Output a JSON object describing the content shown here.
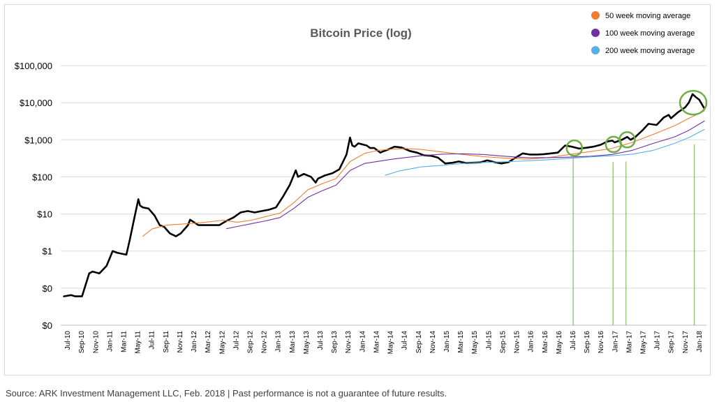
{
  "source_note": "Source: ARK Investment Management LLC, Feb. 2018 | Past performance is not a guarantee of future results.",
  "chart_data": {
    "type": "line",
    "title": "Bitcoin Price (log)",
    "xlabel": "",
    "ylabel": "",
    "yscale": "log",
    "ylim": [
      0.01,
      100000
    ],
    "y_ticks": [
      {
        "value": 0.01,
        "label": "$0"
      },
      {
        "value": 0.1,
        "label": "$0"
      },
      {
        "value": 1,
        "label": "$1"
      },
      {
        "value": 10,
        "label": "$10"
      },
      {
        "value": 100,
        "label": "$100"
      },
      {
        "value": 1000,
        "label": "$1,000"
      },
      {
        "value": 10000,
        "label": "$10,000"
      },
      {
        "value": 100000,
        "label": "$100,000"
      }
    ],
    "xlim": [
      "2010-07-01",
      "2018-02-15"
    ],
    "x_tick_labels": [
      "Jul-10",
      "Sep-10",
      "Nov-10",
      "Jan-11",
      "Mar-11",
      "May-11",
      "Jul-11",
      "Sep-11",
      "Nov-11",
      "Jan-12",
      "Mar-12",
      "May-12",
      "Jul-12",
      "Sep-12",
      "Nov-12",
      "Jan-13",
      "Mar-13",
      "May-13",
      "Jul-13",
      "Sep-13",
      "Nov-13",
      "Jan-14",
      "Mar-14",
      "May-14",
      "Jul-14",
      "Sep-14",
      "Nov-14",
      "Jan-15",
      "Mar-15",
      "May-15",
      "Jul-15",
      "Sep-15",
      "Nov-15",
      "Jan-16",
      "Mar-16",
      "May-16",
      "Jul-16",
      "Sep-16",
      "Nov-16",
      "Jan-17",
      "Mar-17",
      "May-17",
      "Jul-17",
      "Sep-17",
      "Nov-17",
      "Jan-18"
    ],
    "grid": {
      "horizontal": true,
      "vertical": false
    },
    "legend_position": "top-right",
    "series": [
      {
        "name": "",
        "color": "#000000",
        "x": [
          "2010-07-15",
          "2010-08-15",
          "2010-09-01",
          "2010-10-01",
          "2010-11-01",
          "2010-11-15",
          "2010-12-15",
          "2011-01-15",
          "2011-02-10",
          "2011-03-01",
          "2011-03-20",
          "2011-04-10",
          "2011-04-25",
          "2011-05-15",
          "2011-06-01",
          "2011-06-08",
          "2011-06-20",
          "2011-07-15",
          "2011-08-10",
          "2011-09-01",
          "2011-09-20",
          "2011-10-15",
          "2011-11-10",
          "2011-12-01",
          "2012-01-01",
          "2012-01-10",
          "2012-02-15",
          "2012-03-15",
          "2012-04-15",
          "2012-05-15",
          "2012-06-15",
          "2012-07-15",
          "2012-08-15",
          "2012-09-15",
          "2012-10-15",
          "2012-11-15",
          "2012-12-15",
          "2013-01-15",
          "2013-02-15",
          "2013-03-15",
          "2013-04-10",
          "2013-04-20",
          "2013-05-15",
          "2013-06-15",
          "2013-07-05",
          "2013-07-15",
          "2013-08-15",
          "2013-09-15",
          "2013-10-15",
          "2013-11-15",
          "2013-11-30",
          "2013-12-10",
          "2013-12-20",
          "2014-01-05",
          "2014-02-10",
          "2014-02-25",
          "2014-03-15",
          "2014-04-10",
          "2014-04-20",
          "2014-05-15",
          "2014-06-10",
          "2014-07-10",
          "2014-08-15",
          "2014-09-15",
          "2014-10-15",
          "2014-11-15",
          "2014-12-15",
          "2015-01-15",
          "2015-02-15",
          "2015-03-15",
          "2015-04-15",
          "2015-05-15",
          "2015-06-15",
          "2015-07-15",
          "2015-08-15",
          "2015-09-15",
          "2015-10-15",
          "2015-11-15",
          "2015-12-15",
          "2016-01-15",
          "2016-02-15",
          "2016-03-15",
          "2016-04-15",
          "2016-05-15",
          "2016-06-15",
          "2016-07-15",
          "2016-08-15",
          "2016-09-15",
          "2016-10-15",
          "2016-11-15",
          "2016-12-15",
          "2017-01-05",
          "2017-01-15",
          "2017-02-15",
          "2017-03-10",
          "2017-03-25",
          "2017-04-15",
          "2017-05-15",
          "2017-06-10",
          "2017-07-15",
          "2017-08-15",
          "2017-09-05",
          "2017-09-15",
          "2017-10-15",
          "2017-11-15",
          "2017-12-01",
          "2017-12-17",
          "2018-01-01",
          "2018-01-15",
          "2018-02-06"
        ],
        "values": [
          0.06,
          0.065,
          0.06,
          0.06,
          0.25,
          0.28,
          0.25,
          0.4,
          1.0,
          0.9,
          0.85,
          0.8,
          2.0,
          8.0,
          25.0,
          17.0,
          15.0,
          14.0,
          9.0,
          5.0,
          4.5,
          3.0,
          2.5,
          3.0,
          5.0,
          7.0,
          5.0,
          5.0,
          5.0,
          5.0,
          6.5,
          8.0,
          11.0,
          12.0,
          11.0,
          12.0,
          13.0,
          15.0,
          30.0,
          60.0,
          150.0,
          100.0,
          120.0,
          100.0,
          70.0,
          90.0,
          110.0,
          125.0,
          160.0,
          400.0,
          1150.0,
          700.0,
          650.0,
          800.0,
          700.0,
          600.0,
          600.0,
          450.0,
          480.0,
          550.0,
          650.0,
          620.0,
          500.0,
          450.0,
          380.0,
          370.0,
          330.0,
          230.0,
          240.0,
          260.0,
          235.0,
          240.0,
          245.0,
          280.0,
          250.0,
          230.0,
          250.0,
          330.0,
          430.0,
          400.0,
          400.0,
          410.0,
          430.0,
          450.0,
          700.0,
          650.0,
          580.0,
          610.0,
          650.0,
          730.0,
          900.0,
          950.0,
          850.0,
          1000.0,
          1200.0,
          1000.0,
          1200.0,
          1800.0,
          2700.0,
          2500.0,
          4000.0,
          4700.0,
          3800.0,
          5500.0,
          7500.0,
          10000.0,
          17000.0,
          14000.0,
          12000.0,
          7000.0
        ]
      },
      {
        "name": "50 week moving average",
        "color": "#ed7d31",
        "x": [
          "2011-06-20",
          "2011-08-01",
          "2011-10-01",
          "2011-12-01",
          "2012-03-01",
          "2012-06-01",
          "2012-08-01",
          "2012-10-01",
          "2012-12-01",
          "2013-02-01",
          "2013-04-01",
          "2013-06-01",
          "2013-08-01",
          "2013-10-01",
          "2013-12-01",
          "2014-02-01",
          "2014-04-01",
          "2014-06-01",
          "2014-08-01",
          "2014-10-01",
          "2015-01-01",
          "2015-04-01",
          "2015-07-01",
          "2015-10-01",
          "2016-01-01",
          "2016-04-01",
          "2016-07-01",
          "2016-10-01",
          "2017-01-01",
          "2017-04-01",
          "2017-07-01",
          "2017-10-01",
          "2017-12-01",
          "2018-02-06"
        ],
        "values": [
          2.5,
          4.0,
          5.0,
          5.3,
          5.8,
          6.8,
          6.0,
          6.8,
          8.5,
          10.5,
          20.0,
          45.0,
          65.0,
          90.0,
          260.0,
          430.0,
          520.0,
          560.0,
          580.0,
          550.0,
          470.0,
          400.0,
          350.0,
          320.0,
          300.0,
          330.0,
          400.0,
          480.0,
          580.0,
          850.0,
          1400.0,
          2400.0,
          3800.0,
          6000.0
        ]
      },
      {
        "name": "100 week moving average",
        "color": "#7030a0",
        "x": [
          "2012-06-15",
          "2012-08-01",
          "2012-10-01",
          "2012-12-01",
          "2013-02-01",
          "2013-04-01",
          "2013-06-01",
          "2013-08-01",
          "2013-10-01",
          "2013-12-01",
          "2014-02-01",
          "2014-06-01",
          "2014-10-01",
          "2015-01-01",
          "2015-04-01",
          "2015-07-01",
          "2015-10-01",
          "2016-01-01",
          "2016-04-01",
          "2016-07-01",
          "2016-10-01",
          "2017-01-01",
          "2017-04-01",
          "2017-07-01",
          "2017-10-01",
          "2017-12-01",
          "2018-02-06"
        ],
        "values": [
          4.0,
          4.6,
          5.5,
          6.5,
          8.0,
          14.0,
          28.0,
          42.0,
          60.0,
          150.0,
          230.0,
          300.0,
          370.0,
          410.0,
          420.0,
          400.0,
          360.0,
          330.0,
          330.0,
          340.0,
          360.0,
          400.0,
          520.0,
          800.0,
          1200.0,
          1800.0,
          3200.0
        ]
      },
      {
        "name": "200 week moving average",
        "color": "#5aaee6",
        "x": [
          "2014-05-01",
          "2014-07-01",
          "2014-10-01",
          "2015-01-01",
          "2015-04-01",
          "2015-07-01",
          "2015-10-01",
          "2016-01-01",
          "2016-04-01",
          "2016-07-01",
          "2016-10-01",
          "2017-01-01",
          "2017-04-01",
          "2017-07-01",
          "2017-10-01",
          "2017-12-01",
          "2018-02-06"
        ],
        "values": [
          110.0,
          145.0,
          185.0,
          205.0,
          230.0,
          245.0,
          255.0,
          270.0,
          290.0,
          315.0,
          345.0,
          370.0,
          410.0,
          520.0,
          800.0,
          1150.0,
          1900.0
        ]
      }
    ],
    "annotations": {
      "circles": [
        {
          "x": "2016-07-25",
          "y": 600,
          "size": "small"
        },
        {
          "x": "2017-01-10",
          "y": 750,
          "size": "small"
        },
        {
          "x": "2017-03-10",
          "y": 1000,
          "size": "small"
        },
        {
          "x": "2017-12-20",
          "y": 10000,
          "size": "large"
        }
      ],
      "vertical_lines": [
        {
          "x": "2016-07-20",
          "y_top": 320
        },
        {
          "x": "2017-01-08",
          "y_top": 250
        },
        {
          "x": "2017-03-05",
          "y_top": 260
        },
        {
          "x": "2017-12-25",
          "y_top": 750
        }
      ],
      "color": "#70ad47"
    }
  }
}
